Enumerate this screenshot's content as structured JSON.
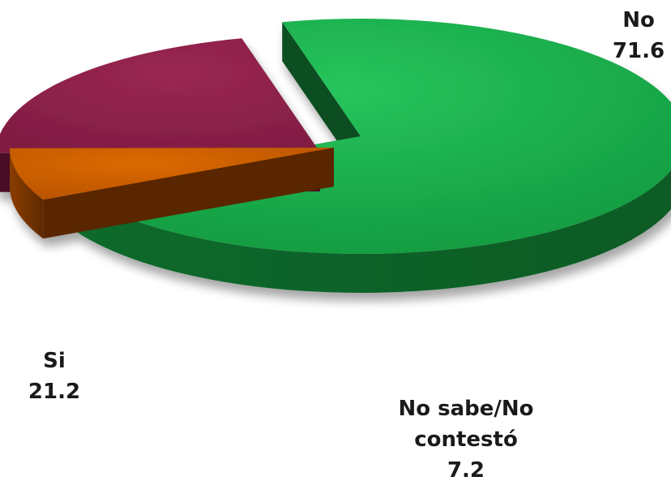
{
  "chart_data": {
    "type": "pie",
    "three_d": true,
    "exploded": true,
    "slices": [
      {
        "label": "No",
        "value": 71.6,
        "label_lines": [
          "No"
        ],
        "value_text": "71.6",
        "top_color": "#19ad4b",
        "side_color": "#0d6a2c",
        "inner_color": "#0b4d20"
      },
      {
        "label": "No sabe/No contestó",
        "value": 7.2,
        "label_lines": [
          "No sabe/No",
          "contestó"
        ],
        "value_text": "7.2",
        "top_color": "#cc5c00",
        "side_color": "#7a3600",
        "inner_color": "#5a2800"
      },
      {
        "label": "Si",
        "value": 21.2,
        "label_lines": [
          "Si"
        ],
        "value_text": "21.2",
        "top_color": "#8e2149",
        "side_color": "#5c1630",
        "inner_color": "#4a1126"
      }
    ]
  }
}
